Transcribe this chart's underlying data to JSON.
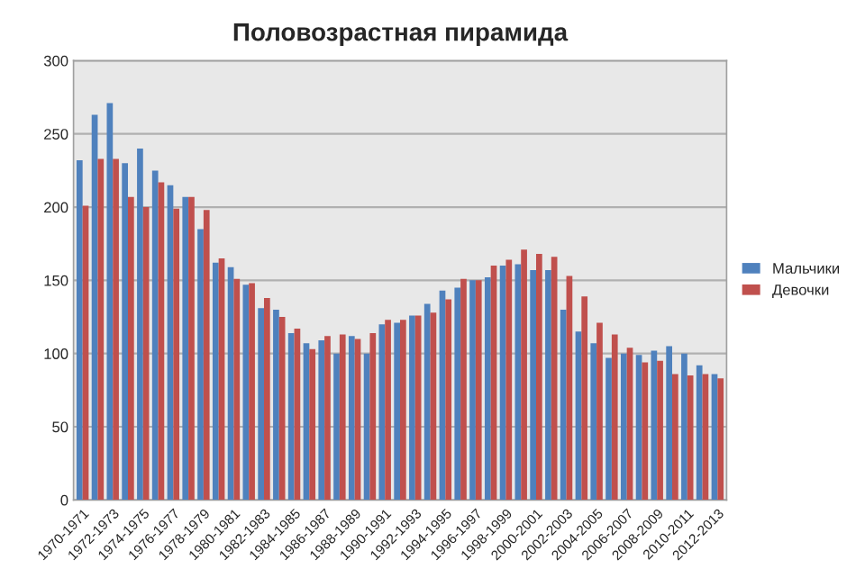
{
  "chart_data": {
    "type": "bar",
    "title": "Половозрастная пирамида",
    "categories": [
      "1970-1971",
      null,
      "1972-1973",
      null,
      "1974-1975",
      null,
      "1976-1977",
      null,
      "1978-1979",
      null,
      "1980-1981",
      null,
      "1982-1983",
      null,
      "1984-1985",
      null,
      "1986-1987",
      null,
      "1988-1989",
      null,
      "1990-1991",
      null,
      "1992-1993",
      null,
      "1994-1995",
      null,
      "1996-1997",
      null,
      "1998-1999",
      null,
      "2000-2001",
      null,
      "2002-2003",
      null,
      "2004-2005",
      null,
      "2006-2007",
      null,
      "2008-2009",
      null,
      "2010-2011",
      null,
      "2012-2013"
    ],
    "series": [
      {
        "name": "Мальчики",
        "color": "#4f81bd",
        "values": [
          232,
          263,
          271,
          230,
          240,
          225,
          215,
          207,
          185,
          162,
          159,
          147,
          131,
          130,
          114,
          107,
          109,
          100,
          112,
          100,
          120,
          121,
          126,
          134,
          143,
          145,
          150,
          152,
          160,
          161,
          157,
          157,
          130,
          115,
          107,
          97,
          100,
          99,
          102,
          105,
          100,
          92,
          86
        ]
      },
      {
        "name": "Девочки",
        "color": "#c0504d",
        "values": [
          201,
          233,
          233,
          207,
          200,
          217,
          199,
          207,
          198,
          165,
          151,
          148,
          138,
          125,
          117,
          103,
          112,
          113,
          110,
          114,
          123,
          123,
          126,
          128,
          137,
          151,
          150,
          160,
          164,
          171,
          168,
          166,
          153,
          139,
          121,
          113,
          104,
          94,
          95,
          86,
          85,
          86,
          83
        ]
      }
    ],
    "ylim": [
      0,
      300
    ],
    "yticks": [
      0,
      50,
      100,
      150,
      200,
      250,
      300
    ],
    "grid": "y",
    "legend": "right"
  }
}
